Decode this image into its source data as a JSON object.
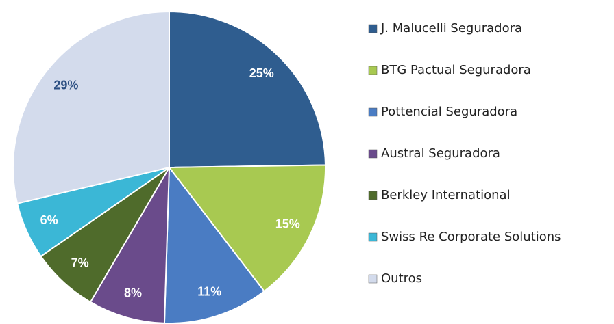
{
  "chart_data": {
    "type": "pie",
    "categories": [
      "J. Malucelli Seguradora",
      "BTG Pactual Seguradora",
      "Pottencial Seguradora",
      "Austral Seguradora",
      "Berkley International",
      "Swiss Re Corporate Solutions",
      "Outros"
    ],
    "values": [
      25,
      15,
      11,
      8,
      7,
      6,
      29
    ],
    "value_labels": [
      "25%",
      "15%",
      "11%",
      "8%",
      "7%",
      "6%",
      "29%"
    ],
    "colors": [
      "#2f5d8f",
      "#a8c951",
      "#4a7cc3",
      "#6a4b8b",
      "#4f6b2b",
      "#3bb7d6",
      "#d3dbec"
    ],
    "value_label_colors": [
      "#ffffff",
      "#ffffff",
      "#ffffff",
      "#ffffff",
      "#ffffff",
      "#ffffff",
      "#2c4f82"
    ],
    "legend": "right"
  }
}
